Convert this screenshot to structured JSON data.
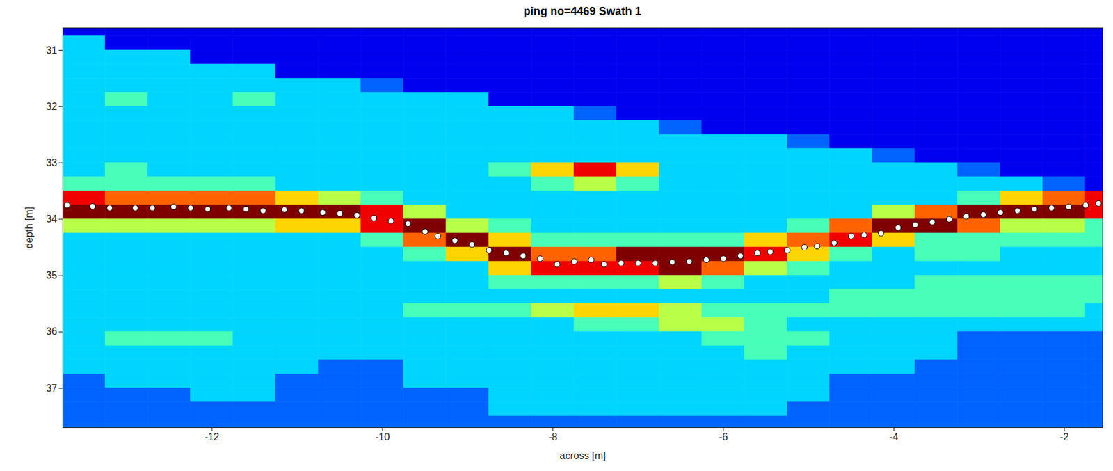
{
  "chart_data": {
    "type": "heatmap",
    "title": "ping no=4469 Swath 1",
    "x_label": "across [m]",
    "y_label": "depth [m]",
    "xlim": [
      -13.75,
      -1.55
    ],
    "ylim": [
      30.6,
      37.7
    ],
    "xticks": [
      -12,
      -10,
      -8,
      -6,
      -4,
      -2
    ],
    "yticks": [
      31,
      32,
      33,
      34,
      35,
      36,
      37
    ],
    "zlim": [
      0,
      9
    ],
    "cells": {
      "x": [
        -13.5,
        -13.0,
        -12.5,
        -12.0,
        -11.5,
        -11.0,
        -10.5,
        -10.0,
        -9.5,
        -9.0,
        -8.5,
        -8.0,
        -7.5,
        -7.0,
        -6.5,
        -6.0,
        -5.5,
        -5.0,
        -4.5,
        -4.0,
        -3.5,
        -3.0,
        -2.5,
        -2.0,
        -1.5
      ],
      "y": [
        30.625,
        30.875,
        31.125,
        31.375,
        31.625,
        31.875,
        32.125,
        32.375,
        32.625,
        32.875,
        33.125,
        33.375,
        33.625,
        33.875,
        34.125,
        34.375,
        34.625,
        34.875,
        35.125,
        35.375,
        35.625,
        35.875,
        36.125,
        36.375,
        36.625,
        36.875,
        37.125,
        37.375,
        37.625
      ],
      "values": [
        [
          1,
          1,
          1,
          1,
          1,
          1,
          1,
          1,
          1,
          1,
          1,
          1,
          1,
          1,
          1,
          1,
          1,
          1,
          1,
          1,
          1,
          1,
          1,
          1,
          1
        ],
        [
          3,
          1,
          1,
          1,
          1,
          1,
          1,
          1,
          1,
          1,
          1,
          1,
          1,
          1,
          1,
          1,
          1,
          1,
          1,
          1,
          1,
          1,
          1,
          1,
          1
        ],
        [
          3,
          3,
          3,
          1,
          1,
          1,
          1,
          1,
          1,
          1,
          1,
          1,
          1,
          1,
          1,
          1,
          1,
          1,
          1,
          1,
          1,
          1,
          1,
          1,
          1
        ],
        [
          3,
          3,
          3,
          3,
          3,
          1,
          1,
          1,
          1,
          1,
          1,
          1,
          1,
          1,
          1,
          1,
          1,
          1,
          1,
          1,
          1,
          1,
          1,
          1,
          1
        ],
        [
          3,
          3,
          3,
          3,
          3,
          3,
          3,
          2,
          1,
          1,
          1,
          1,
          1,
          1,
          1,
          1,
          1,
          1,
          1,
          1,
          1,
          1,
          1,
          1,
          1
        ],
        [
          3,
          4,
          3,
          3,
          4,
          3,
          3,
          3,
          3,
          3,
          1,
          1,
          1,
          1,
          1,
          1,
          1,
          1,
          1,
          1,
          1,
          1,
          1,
          1,
          1
        ],
        [
          3,
          3,
          3,
          3,
          3,
          3,
          3,
          3,
          3,
          3,
          3,
          3,
          2,
          1,
          1,
          1,
          1,
          1,
          1,
          1,
          1,
          1,
          1,
          1,
          1
        ],
        [
          3,
          3,
          3,
          3,
          3,
          3,
          3,
          3,
          3,
          3,
          3,
          3,
          3,
          3,
          2,
          1,
          1,
          1,
          1,
          1,
          1,
          1,
          1,
          1,
          1
        ],
        [
          3,
          3,
          3,
          3,
          3,
          3,
          3,
          3,
          3,
          3,
          3,
          3,
          3,
          3,
          3,
          3,
          3,
          2,
          1,
          1,
          1,
          1,
          1,
          1,
          1
        ],
        [
          3,
          3,
          3,
          3,
          3,
          3,
          3,
          3,
          3,
          3,
          3,
          3,
          3,
          3,
          3,
          3,
          3,
          3,
          3,
          2,
          1,
          1,
          1,
          1,
          1
        ],
        [
          3,
          4,
          3,
          3,
          3,
          3,
          3,
          3,
          3,
          3,
          4,
          6,
          8,
          6,
          3,
          3,
          3,
          3,
          3,
          3,
          3,
          2,
          1,
          1,
          1
        ],
        [
          4,
          4,
          4,
          4,
          4,
          3,
          3,
          3,
          3,
          3,
          3,
          4,
          5,
          4,
          3,
          3,
          3,
          3,
          3,
          3,
          3,
          3,
          3,
          2,
          1
        ],
        [
          8,
          7,
          7,
          7,
          7,
          6,
          5,
          4,
          3,
          3,
          3,
          3,
          3,
          3,
          3,
          3,
          3,
          3,
          3,
          3,
          3,
          4,
          6,
          7,
          8
        ],
        [
          9,
          9,
          9,
          9,
          9,
          9,
          9,
          8,
          5,
          3,
          3,
          3,
          3,
          3,
          3,
          3,
          3,
          3,
          3,
          5,
          7,
          9,
          9,
          9,
          8
        ],
        [
          5,
          5,
          5,
          5,
          5,
          6,
          6,
          8,
          9,
          5,
          4,
          3,
          3,
          3,
          3,
          3,
          3,
          4,
          7,
          9,
          9,
          7,
          5,
          5,
          4
        ],
        [
          3,
          3,
          3,
          3,
          3,
          3,
          3,
          4,
          7,
          9,
          6,
          4,
          4,
          4,
          4,
          4,
          6,
          7,
          8,
          6,
          4,
          4,
          4,
          4,
          4
        ],
        [
          3,
          3,
          3,
          3,
          3,
          3,
          3,
          3,
          4,
          6,
          9,
          7,
          7,
          9,
          9,
          9,
          8,
          6,
          4,
          3,
          4,
          4,
          3,
          3,
          3
        ],
        [
          3,
          3,
          3,
          3,
          3,
          3,
          3,
          3,
          3,
          3,
          6,
          8,
          8,
          8,
          9,
          7,
          5,
          4,
          3,
          3,
          3,
          3,
          3,
          3,
          3
        ],
        [
          3,
          3,
          3,
          3,
          3,
          3,
          3,
          3,
          3,
          3,
          4,
          4,
          4,
          4,
          5,
          4,
          3,
          3,
          3,
          3,
          4,
          4,
          4,
          4,
          4
        ],
        [
          3,
          3,
          3,
          3,
          3,
          3,
          3,
          3,
          3,
          3,
          3,
          3,
          3,
          3,
          3,
          3,
          3,
          3,
          4,
          4,
          4,
          4,
          4,
          4,
          4
        ],
        [
          3,
          3,
          3,
          3,
          3,
          3,
          3,
          3,
          4,
          4,
          4,
          5,
          6,
          6,
          5,
          4,
          4,
          4,
          4,
          4,
          4,
          4,
          4,
          4,
          3
        ],
        [
          3,
          3,
          3,
          3,
          3,
          3,
          3,
          3,
          3,
          3,
          3,
          3,
          4,
          4,
          5,
          5,
          4,
          3,
          3,
          3,
          3,
          3,
          3,
          3,
          3
        ],
        [
          3,
          4,
          4,
          4,
          3,
          3,
          3,
          3,
          3,
          3,
          3,
          3,
          3,
          3,
          3,
          4,
          4,
          4,
          3,
          3,
          3,
          2,
          2,
          2,
          2
        ],
        [
          3,
          3,
          3,
          3,
          3,
          3,
          3,
          3,
          3,
          3,
          3,
          3,
          3,
          3,
          3,
          3,
          4,
          3,
          3,
          3,
          3,
          2,
          2,
          2,
          2
        ],
        [
          3,
          3,
          3,
          3,
          3,
          3,
          2,
          2,
          3,
          3,
          3,
          3,
          3,
          3,
          3,
          3,
          3,
          3,
          3,
          3,
          2,
          2,
          2,
          2,
          2
        ],
        [
          2,
          3,
          3,
          3,
          3,
          2,
          2,
          2,
          3,
          3,
          3,
          3,
          3,
          3,
          3,
          3,
          3,
          3,
          2,
          2,
          2,
          2,
          2,
          2,
          2
        ],
        [
          2,
          2,
          2,
          3,
          3,
          2,
          2,
          2,
          2,
          2,
          3,
          3,
          3,
          3,
          3,
          3,
          3,
          3,
          2,
          2,
          2,
          2,
          2,
          2,
          2
        ],
        [
          2,
          2,
          2,
          2,
          2,
          2,
          2,
          2,
          2,
          2,
          3,
          3,
          3,
          3,
          3,
          3,
          3,
          2,
          2,
          2,
          2,
          2,
          2,
          2,
          2
        ],
        [
          2,
          2,
          2,
          2,
          2,
          2,
          2,
          2,
          2,
          2,
          2,
          2,
          2,
          2,
          2,
          2,
          2,
          2,
          2,
          2,
          2,
          2,
          2,
          2,
          2
        ]
      ]
    },
    "x": [
      -13.7,
      -13.4,
      -13.2,
      -12.9,
      -12.7,
      -12.45,
      -12.25,
      -12.05,
      -11.8,
      -11.6,
      -11.4,
      -11.15,
      -10.95,
      -10.7,
      -10.5,
      -10.3,
      -10.1,
      -9.9,
      -9.7,
      -9.5,
      -9.35,
      -9.15,
      -8.95,
      -8.75,
      -8.55,
      -8.35,
      -8.15,
      -7.95,
      -7.75,
      -7.55,
      -7.4,
      -7.2,
      -7.0,
      -6.8,
      -6.6,
      -6.4,
      -6.2,
      -6.0,
      -5.8,
      -5.6,
      -5.45,
      -5.25,
      -5.05,
      -4.9,
      -4.7,
      -4.5,
      -4.35,
      -4.15,
      -3.95,
      -3.75,
      -3.55,
      -3.35,
      -3.15,
      -2.95,
      -2.75,
      -2.55,
      -2.35,
      -2.15,
      -1.95,
      -1.75,
      -1.6
    ],
    "values": [
      33.75,
      33.77,
      33.8,
      33.8,
      33.8,
      33.78,
      33.8,
      33.82,
      33.8,
      33.82,
      33.85,
      33.83,
      33.85,
      33.88,
      33.9,
      33.93,
      33.98,
      34.03,
      34.08,
      34.22,
      34.3,
      34.38,
      34.45,
      34.55,
      34.6,
      34.65,
      34.7,
      34.8,
      34.75,
      34.72,
      34.8,
      34.78,
      34.78,
      34.78,
      34.76,
      34.75,
      34.72,
      34.7,
      34.65,
      34.6,
      34.58,
      34.55,
      34.5,
      34.48,
      34.42,
      34.3,
      34.28,
      34.25,
      34.15,
      34.1,
      34.05,
      34.0,
      33.95,
      33.92,
      33.88,
      33.85,
      33.82,
      33.8,
      33.78,
      33.75,
      33.72
    ],
    "marker": "circle",
    "color": "#ffffff"
  }
}
